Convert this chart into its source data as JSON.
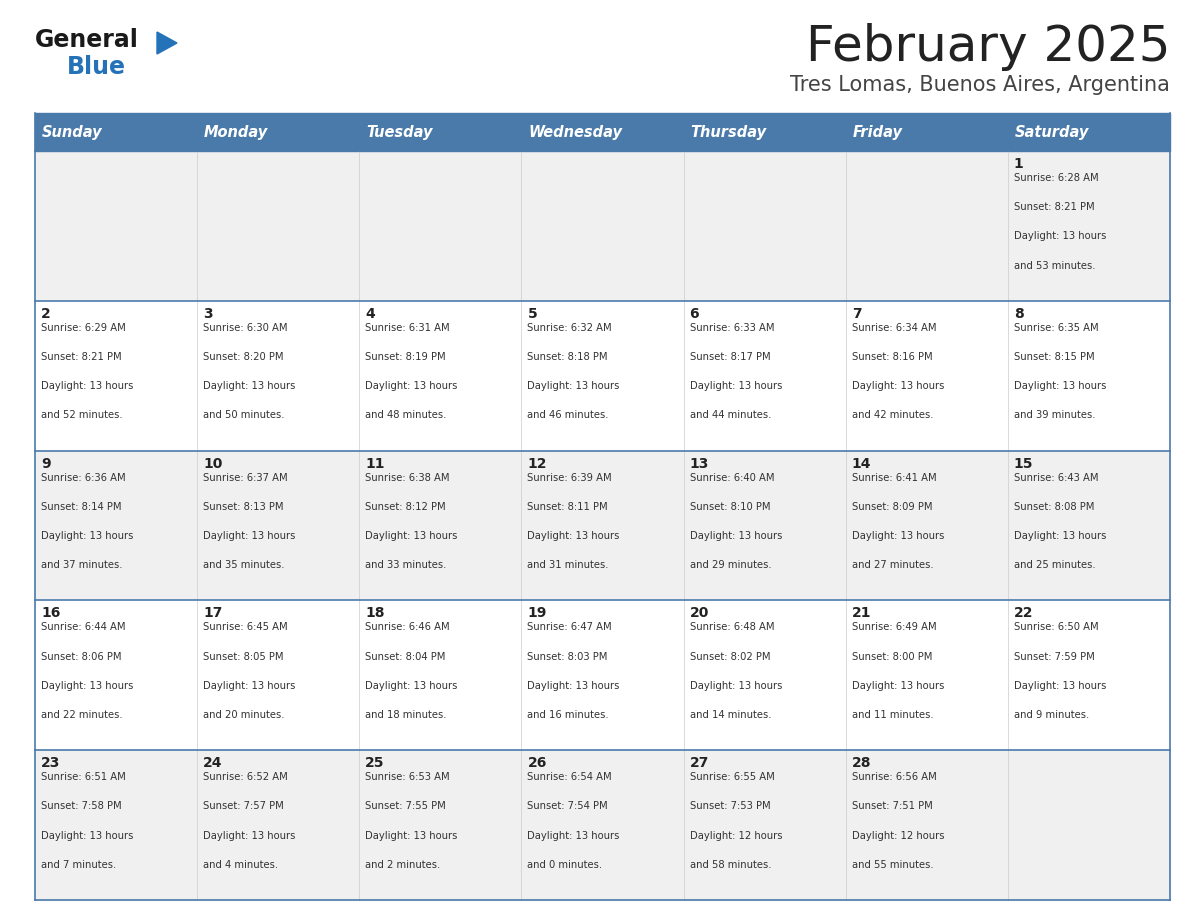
{
  "title": "February 2025",
  "subtitle": "Tres Lomas, Buenos Aires, Argentina",
  "header_bg": "#4a7aaa",
  "header_text": "#ffffff",
  "row_bg_light": "#f0f0f0",
  "row_bg_white": "#ffffff",
  "border_color": "#4a7aaa",
  "grid_color": "#cccccc",
  "title_color": "#222222",
  "subtitle_color": "#444444",
  "day_num_color": "#222222",
  "info_color": "#333333",
  "day_headers": [
    "Sunday",
    "Monday",
    "Tuesday",
    "Wednesday",
    "Thursday",
    "Friday",
    "Saturday"
  ],
  "weeks": [
    [
      {
        "day": "",
        "info": ""
      },
      {
        "day": "",
        "info": ""
      },
      {
        "day": "",
        "info": ""
      },
      {
        "day": "",
        "info": ""
      },
      {
        "day": "",
        "info": ""
      },
      {
        "day": "",
        "info": ""
      },
      {
        "day": "1",
        "info": "Sunrise: 6:28 AM\nSunset: 8:21 PM\nDaylight: 13 hours\nand 53 minutes."
      }
    ],
    [
      {
        "day": "2",
        "info": "Sunrise: 6:29 AM\nSunset: 8:21 PM\nDaylight: 13 hours\nand 52 minutes."
      },
      {
        "day": "3",
        "info": "Sunrise: 6:30 AM\nSunset: 8:20 PM\nDaylight: 13 hours\nand 50 minutes."
      },
      {
        "day": "4",
        "info": "Sunrise: 6:31 AM\nSunset: 8:19 PM\nDaylight: 13 hours\nand 48 minutes."
      },
      {
        "day": "5",
        "info": "Sunrise: 6:32 AM\nSunset: 8:18 PM\nDaylight: 13 hours\nand 46 minutes."
      },
      {
        "day": "6",
        "info": "Sunrise: 6:33 AM\nSunset: 8:17 PM\nDaylight: 13 hours\nand 44 minutes."
      },
      {
        "day": "7",
        "info": "Sunrise: 6:34 AM\nSunset: 8:16 PM\nDaylight: 13 hours\nand 42 minutes."
      },
      {
        "day": "8",
        "info": "Sunrise: 6:35 AM\nSunset: 8:15 PM\nDaylight: 13 hours\nand 39 minutes."
      }
    ],
    [
      {
        "day": "9",
        "info": "Sunrise: 6:36 AM\nSunset: 8:14 PM\nDaylight: 13 hours\nand 37 minutes."
      },
      {
        "day": "10",
        "info": "Sunrise: 6:37 AM\nSunset: 8:13 PM\nDaylight: 13 hours\nand 35 minutes."
      },
      {
        "day": "11",
        "info": "Sunrise: 6:38 AM\nSunset: 8:12 PM\nDaylight: 13 hours\nand 33 minutes."
      },
      {
        "day": "12",
        "info": "Sunrise: 6:39 AM\nSunset: 8:11 PM\nDaylight: 13 hours\nand 31 minutes."
      },
      {
        "day": "13",
        "info": "Sunrise: 6:40 AM\nSunset: 8:10 PM\nDaylight: 13 hours\nand 29 minutes."
      },
      {
        "day": "14",
        "info": "Sunrise: 6:41 AM\nSunset: 8:09 PM\nDaylight: 13 hours\nand 27 minutes."
      },
      {
        "day": "15",
        "info": "Sunrise: 6:43 AM\nSunset: 8:08 PM\nDaylight: 13 hours\nand 25 minutes."
      }
    ],
    [
      {
        "day": "16",
        "info": "Sunrise: 6:44 AM\nSunset: 8:06 PM\nDaylight: 13 hours\nand 22 minutes."
      },
      {
        "day": "17",
        "info": "Sunrise: 6:45 AM\nSunset: 8:05 PM\nDaylight: 13 hours\nand 20 minutes."
      },
      {
        "day": "18",
        "info": "Sunrise: 6:46 AM\nSunset: 8:04 PM\nDaylight: 13 hours\nand 18 minutes."
      },
      {
        "day": "19",
        "info": "Sunrise: 6:47 AM\nSunset: 8:03 PM\nDaylight: 13 hours\nand 16 minutes."
      },
      {
        "day": "20",
        "info": "Sunrise: 6:48 AM\nSunset: 8:02 PM\nDaylight: 13 hours\nand 14 minutes."
      },
      {
        "day": "21",
        "info": "Sunrise: 6:49 AM\nSunset: 8:00 PM\nDaylight: 13 hours\nand 11 minutes."
      },
      {
        "day": "22",
        "info": "Sunrise: 6:50 AM\nSunset: 7:59 PM\nDaylight: 13 hours\nand 9 minutes."
      }
    ],
    [
      {
        "day": "23",
        "info": "Sunrise: 6:51 AM\nSunset: 7:58 PM\nDaylight: 13 hours\nand 7 minutes."
      },
      {
        "day": "24",
        "info": "Sunrise: 6:52 AM\nSunset: 7:57 PM\nDaylight: 13 hours\nand 4 minutes."
      },
      {
        "day": "25",
        "info": "Sunrise: 6:53 AM\nSunset: 7:55 PM\nDaylight: 13 hours\nand 2 minutes."
      },
      {
        "day": "26",
        "info": "Sunrise: 6:54 AM\nSunset: 7:54 PM\nDaylight: 13 hours\nand 0 minutes."
      },
      {
        "day": "27",
        "info": "Sunrise: 6:55 AM\nSunset: 7:53 PM\nDaylight: 12 hours\nand 58 minutes."
      },
      {
        "day": "28",
        "info": "Sunrise: 6:56 AM\nSunset: 7:51 PM\nDaylight: 12 hours\nand 55 minutes."
      },
      {
        "day": "",
        "info": ""
      }
    ]
  ],
  "logo_general_color": "#1a1a1a",
  "logo_blue_color": "#2472b8",
  "logo_triangle_color": "#2472b8"
}
